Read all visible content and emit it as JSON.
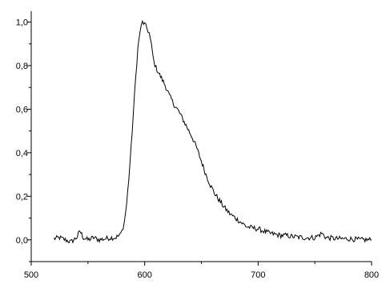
{
  "chart_data": {
    "type": "line",
    "title": "",
    "xlabel": "",
    "ylabel": "",
    "xlim": [
      500,
      800
    ],
    "ylim": [
      -0.1,
      1.05
    ],
    "grid": false,
    "legend": "none",
    "x_ticks": [
      500,
      600,
      700,
      800
    ],
    "x_tick_labels": [
      "500",
      "600",
      "700",
      "800"
    ],
    "y_ticks": [
      0.0,
      0.2,
      0.4,
      0.6,
      0.8,
      1.0
    ],
    "y_tick_labels": [
      "0,0",
      "0,2",
      "0,4",
      "0,6",
      "0,8",
      "1,0"
    ],
    "series": [
      {
        "color": "#000000",
        "x": [
          520,
          525,
          530,
          535,
          540,
          543,
          546,
          550,
          555,
          560,
          565,
          570,
          574,
          578,
          580,
          582,
          584,
          586,
          588,
          590,
          592,
          594,
          596,
          598,
          600,
          602,
          604,
          606,
          608,
          610,
          614,
          618,
          622,
          626,
          630,
          634,
          638,
          642,
          646,
          650,
          654,
          658,
          662,
          666,
          670,
          675,
          680,
          685,
          690,
          695,
          700,
          705,
          710,
          715,
          720,
          725,
          730,
          740,
          750,
          756,
          760,
          770,
          780,
          790,
          800
        ],
        "y": [
          0.005,
          0.01,
          0.0,
          -0.01,
          0.01,
          0.04,
          0.01,
          0.0,
          0.01,
          0.0,
          0.005,
          0.01,
          0.01,
          0.02,
          0.04,
          0.08,
          0.16,
          0.28,
          0.42,
          0.58,
          0.74,
          0.88,
          0.96,
          1.0,
          0.99,
          0.97,
          0.95,
          0.89,
          0.82,
          0.79,
          0.75,
          0.71,
          0.66,
          0.62,
          0.59,
          0.55,
          0.51,
          0.47,
          0.42,
          0.36,
          0.3,
          0.25,
          0.21,
          0.18,
          0.15,
          0.12,
          0.1,
          0.08,
          0.06,
          0.055,
          0.05,
          0.04,
          0.03,
          0.025,
          0.02,
          0.02,
          0.015,
          0.01,
          0.01,
          0.03,
          0.01,
          0.005,
          0.005,
          0.0,
          0.0
        ]
      }
    ]
  }
}
